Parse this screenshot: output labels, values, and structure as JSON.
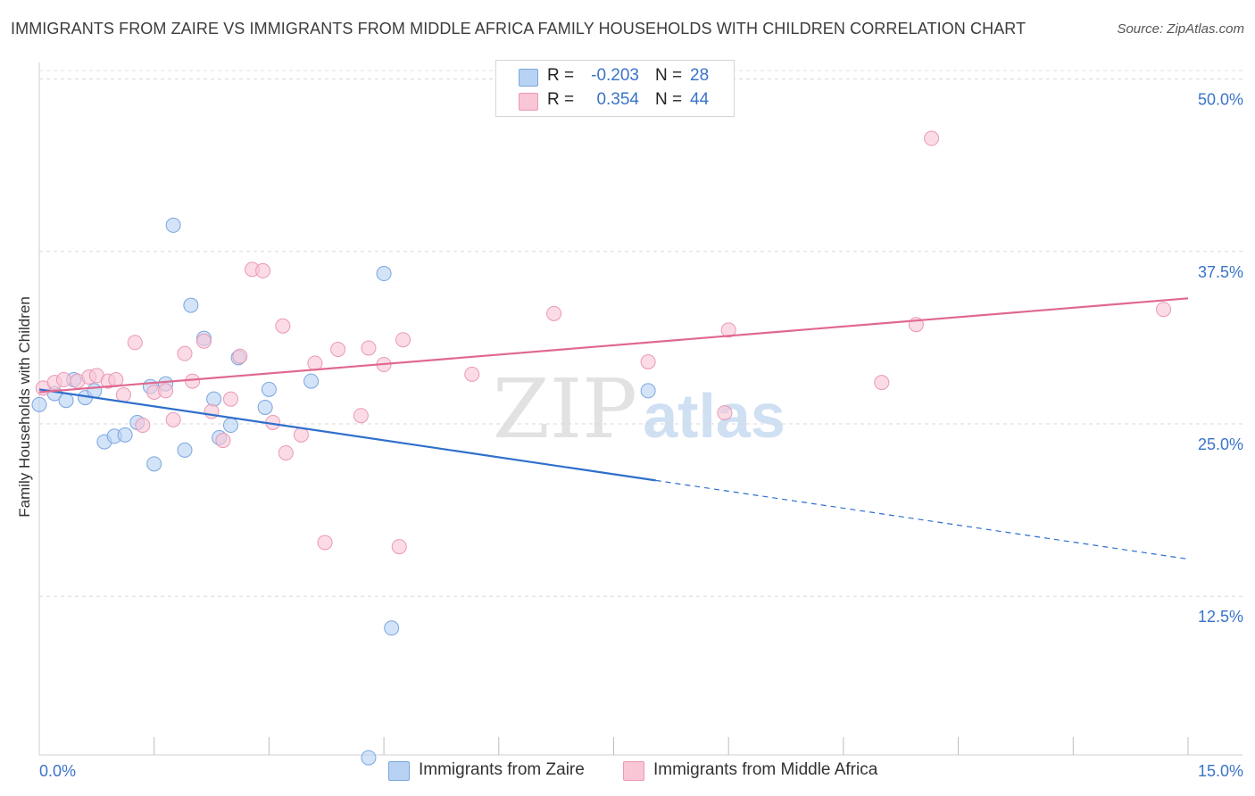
{
  "title": "IMMIGRANTS FROM ZAIRE VS IMMIGRANTS FROM MIDDLE AFRICA FAMILY HOUSEHOLDS WITH CHILDREN CORRELATION CHART",
  "source": "Source: ZipAtlas.com",
  "watermark": {
    "zip": "ZIP",
    "atlas": "atlas"
  },
  "legend_top": {
    "rows": [
      {
        "r_label": "R =",
        "r_value": "-0.203",
        "n_label": "N =",
        "n_value": "28"
      },
      {
        "r_label": "R =",
        "r_value": "0.354",
        "n_label": "N =",
        "n_value": "44"
      }
    ]
  },
  "colors": {
    "zaire_fill": "#b8d2f3",
    "zaire_stroke": "#7aa6e0",
    "zaire_line": "#2f6fcc",
    "africa_fill": "#f9c6d6",
    "africa_stroke": "#eb98b4",
    "africa_line": "#e0688f",
    "tick_label": "#3a74c8",
    "grid": "#d8d8d8"
  },
  "chart_data": {
    "type": "scatter",
    "title": "IMMIGRANTS FROM ZAIRE VS IMMIGRANTS FROM MIDDLE AFRICA FAMILY HOUSEHOLDS WITH CHILDREN CORRELATION CHART",
    "xlabel": "",
    "ylabel": "Family Households with Children",
    "xlim": [
      0,
      15
    ],
    "ylim": [
      1,
      51.2
    ],
    "x_tick_labels": [
      {
        "value": 0,
        "label": "0.0%"
      },
      {
        "value": 15,
        "label": "15.0%"
      }
    ],
    "x_minor_ticks": [
      1.5,
      3.0,
      4.5,
      6.0,
      7.5,
      9.0,
      10.5,
      12.0,
      13.5,
      15.0
    ],
    "y_ticks": [
      {
        "value": 12.5,
        "label": "12.5%"
      },
      {
        "value": 25.0,
        "label": "25.0%"
      },
      {
        "value": 37.5,
        "label": "37.5%"
      },
      {
        "value": 50.0,
        "label": "50.0%"
      }
    ],
    "series": [
      {
        "name": "Immigrants from Zaire",
        "color_key": "zaire",
        "points": [
          [
            0.0,
            26.4
          ],
          [
            0.2,
            27.2
          ],
          [
            0.35,
            26.7
          ],
          [
            0.45,
            28.2
          ],
          [
            0.6,
            26.9
          ],
          [
            0.72,
            27.4
          ],
          [
            0.85,
            23.7
          ],
          [
            0.98,
            24.1
          ],
          [
            1.12,
            24.2
          ],
          [
            1.28,
            25.1
          ],
          [
            1.45,
            27.7
          ],
          [
            1.5,
            22.1
          ],
          [
            1.65,
            27.9
          ],
          [
            1.75,
            39.4
          ],
          [
            1.9,
            23.1
          ],
          [
            1.98,
            33.6
          ],
          [
            2.15,
            31.2
          ],
          [
            2.28,
            26.8
          ],
          [
            2.35,
            24.0
          ],
          [
            2.5,
            24.9
          ],
          [
            2.6,
            29.8
          ],
          [
            2.95,
            26.2
          ],
          [
            3.0,
            27.5
          ],
          [
            3.55,
            28.1
          ],
          [
            4.5,
            35.9
          ],
          [
            4.6,
            10.2
          ],
          [
            4.3,
            0.8
          ],
          [
            7.95,
            27.4
          ]
        ],
        "trend": {
          "x_start": 0.0,
          "y_start": 27.5,
          "x_solid_end": 8.05,
          "x_end": 15.0,
          "y_end": 15.2
        }
      },
      {
        "name": "Immigrants from Middle Africa",
        "color_key": "africa",
        "points": [
          [
            0.05,
            27.6
          ],
          [
            0.2,
            28.0
          ],
          [
            0.32,
            28.2
          ],
          [
            0.5,
            28.1
          ],
          [
            0.65,
            28.4
          ],
          [
            0.75,
            28.5
          ],
          [
            0.9,
            28.1
          ],
          [
            1.0,
            28.2
          ],
          [
            1.1,
            27.1
          ],
          [
            1.25,
            30.9
          ],
          [
            1.35,
            24.9
          ],
          [
            1.5,
            27.3
          ],
          [
            1.65,
            27.4
          ],
          [
            1.75,
            25.3
          ],
          [
            1.9,
            30.1
          ],
          [
            2.0,
            28.1
          ],
          [
            2.15,
            31.0
          ],
          [
            2.25,
            25.9
          ],
          [
            2.4,
            23.8
          ],
          [
            2.5,
            26.8
          ],
          [
            2.62,
            29.9
          ],
          [
            2.78,
            36.2
          ],
          [
            2.92,
            36.1
          ],
          [
            3.05,
            25.1
          ],
          [
            3.18,
            32.1
          ],
          [
            3.22,
            22.9
          ],
          [
            3.42,
            24.2
          ],
          [
            3.6,
            29.4
          ],
          [
            3.73,
            16.4
          ],
          [
            3.9,
            30.4
          ],
          [
            4.2,
            25.6
          ],
          [
            4.3,
            30.5
          ],
          [
            4.5,
            29.3
          ],
          [
            4.75,
            31.1
          ],
          [
            4.7,
            16.1
          ],
          [
            5.65,
            28.6
          ],
          [
            6.72,
            33.0
          ],
          [
            7.95,
            29.5
          ],
          [
            8.95,
            25.8
          ],
          [
            9.0,
            31.8
          ],
          [
            11.0,
            28.0
          ],
          [
            11.45,
            32.2
          ],
          [
            11.65,
            45.7
          ],
          [
            14.68,
            33.3
          ]
        ],
        "trend": {
          "x_start": 0.0,
          "y_start": 27.3,
          "x_end": 15.0,
          "y_end": 34.1
        }
      }
    ]
  }
}
